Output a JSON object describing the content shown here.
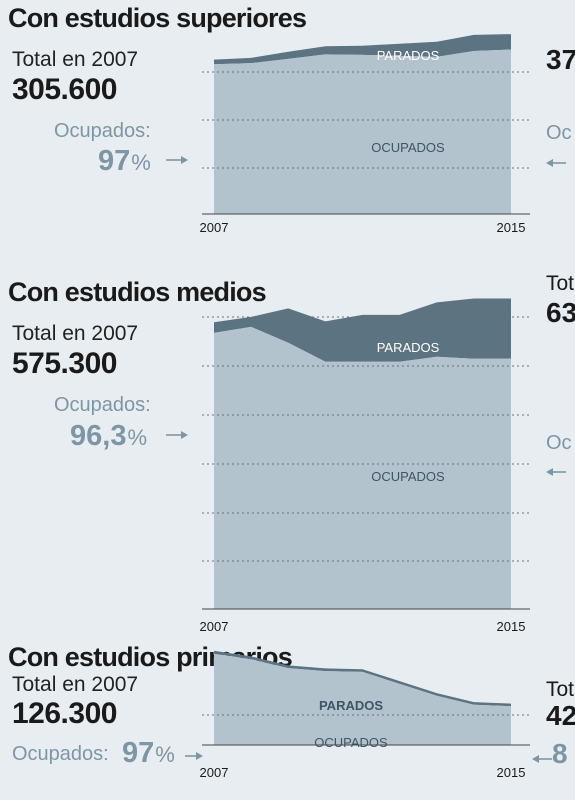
{
  "colors": {
    "background": "#e8edf1",
    "ocupados_fill": "#b3c3cd",
    "parados_fill": "#5c7381",
    "accent_text": "#7d96a5",
    "gridline": "#6f6f6f"
  },
  "arrow_glyph": "→",
  "arrow_left_glyph": "←",
  "pct_unit": "%",
  "panels": [
    {
      "title": "Con estudios superiores",
      "total_label": "Total en 2007",
      "total_value": "305.600",
      "occupied_label": "Ocupados:",
      "occupied_pct": "97",
      "cut_total": "37",
      "cut_occ": "Oc"
    },
    {
      "title": "Con estudios medios",
      "total_label": "Total en 2007",
      "total_value": "575.300",
      "occupied_label": "Ocupados:",
      "occupied_pct": "96,3",
      "cut_total_label": "Tot",
      "cut_total": "63",
      "cut_occ": "Oc"
    },
    {
      "title": "Con estudios primarios",
      "total_label": "Total en 2007",
      "total_value": "126.300",
      "occupied_label": "Ocupados:",
      "occupied_pct": "97",
      "cut_total_label": "Tot",
      "cut_total": "42",
      "cut_occ_pct": "8"
    }
  ],
  "chart_data": [
    {
      "type": "area",
      "stacked": true,
      "title": "Con estudios superiores",
      "x": [
        2007,
        2008,
        2009,
        2010,
        2011,
        2012,
        2013,
        2014,
        2015
      ],
      "x_tick_labels": [
        "2007",
        "2015"
      ],
      "series": [
        {
          "name": "OCUPADOS",
          "values": [
            296500,
            298500,
            307000,
            316000,
            315000,
            313000,
            311000,
            322500,
            325500
          ]
        },
        {
          "name": "PARADOS",
          "values": [
            9100,
            10500,
            14000,
            16000,
            18000,
            24000,
            30000,
            32000,
            30500
          ]
        }
      ],
      "ylim": [
        0,
        380000
      ],
      "grid": true
    },
    {
      "type": "area",
      "stacked": true,
      "title": "Con estudios medios",
      "x": [
        2007,
        2008,
        2009,
        2010,
        2011,
        2012,
        2013,
        2014,
        2015
      ],
      "x_tick_labels": [
        "2007",
        "2015"
      ],
      "series": [
        {
          "name": "OCUPADOS",
          "values": [
            554000,
            566000,
            534000,
            496000,
            496000,
            496000,
            506000,
            502000,
            502000
          ]
        },
        {
          "name": "PARADOS",
          "values": [
            21300,
            20000,
            69000,
            81000,
            94000,
            94000,
            109000,
            121000,
            121000
          ]
        }
      ],
      "ylim": [
        0,
        660000
      ],
      "grid": true
    },
    {
      "type": "area",
      "stacked": true,
      "title": "Con estudios primarios",
      "x": [
        2007,
        2008,
        2009,
        2010,
        2011,
        2012,
        2013,
        2014,
        2015
      ],
      "x_tick_labels": [
        "2007",
        "2015"
      ],
      "series": [
        {
          "name": "OCUPADOS",
          "values": [
            122500,
            115000,
            103000,
            99000,
            98000,
            82000,
            66000,
            54000,
            52000
          ]
        },
        {
          "name": "PARADOS",
          "values": [
            3800,
            3800,
            3700,
            3700,
            3600,
            3600,
            3600,
            3500,
            3500
          ]
        }
      ],
      "ylim": [
        0,
        130000
      ],
      "grid": true
    }
  ]
}
